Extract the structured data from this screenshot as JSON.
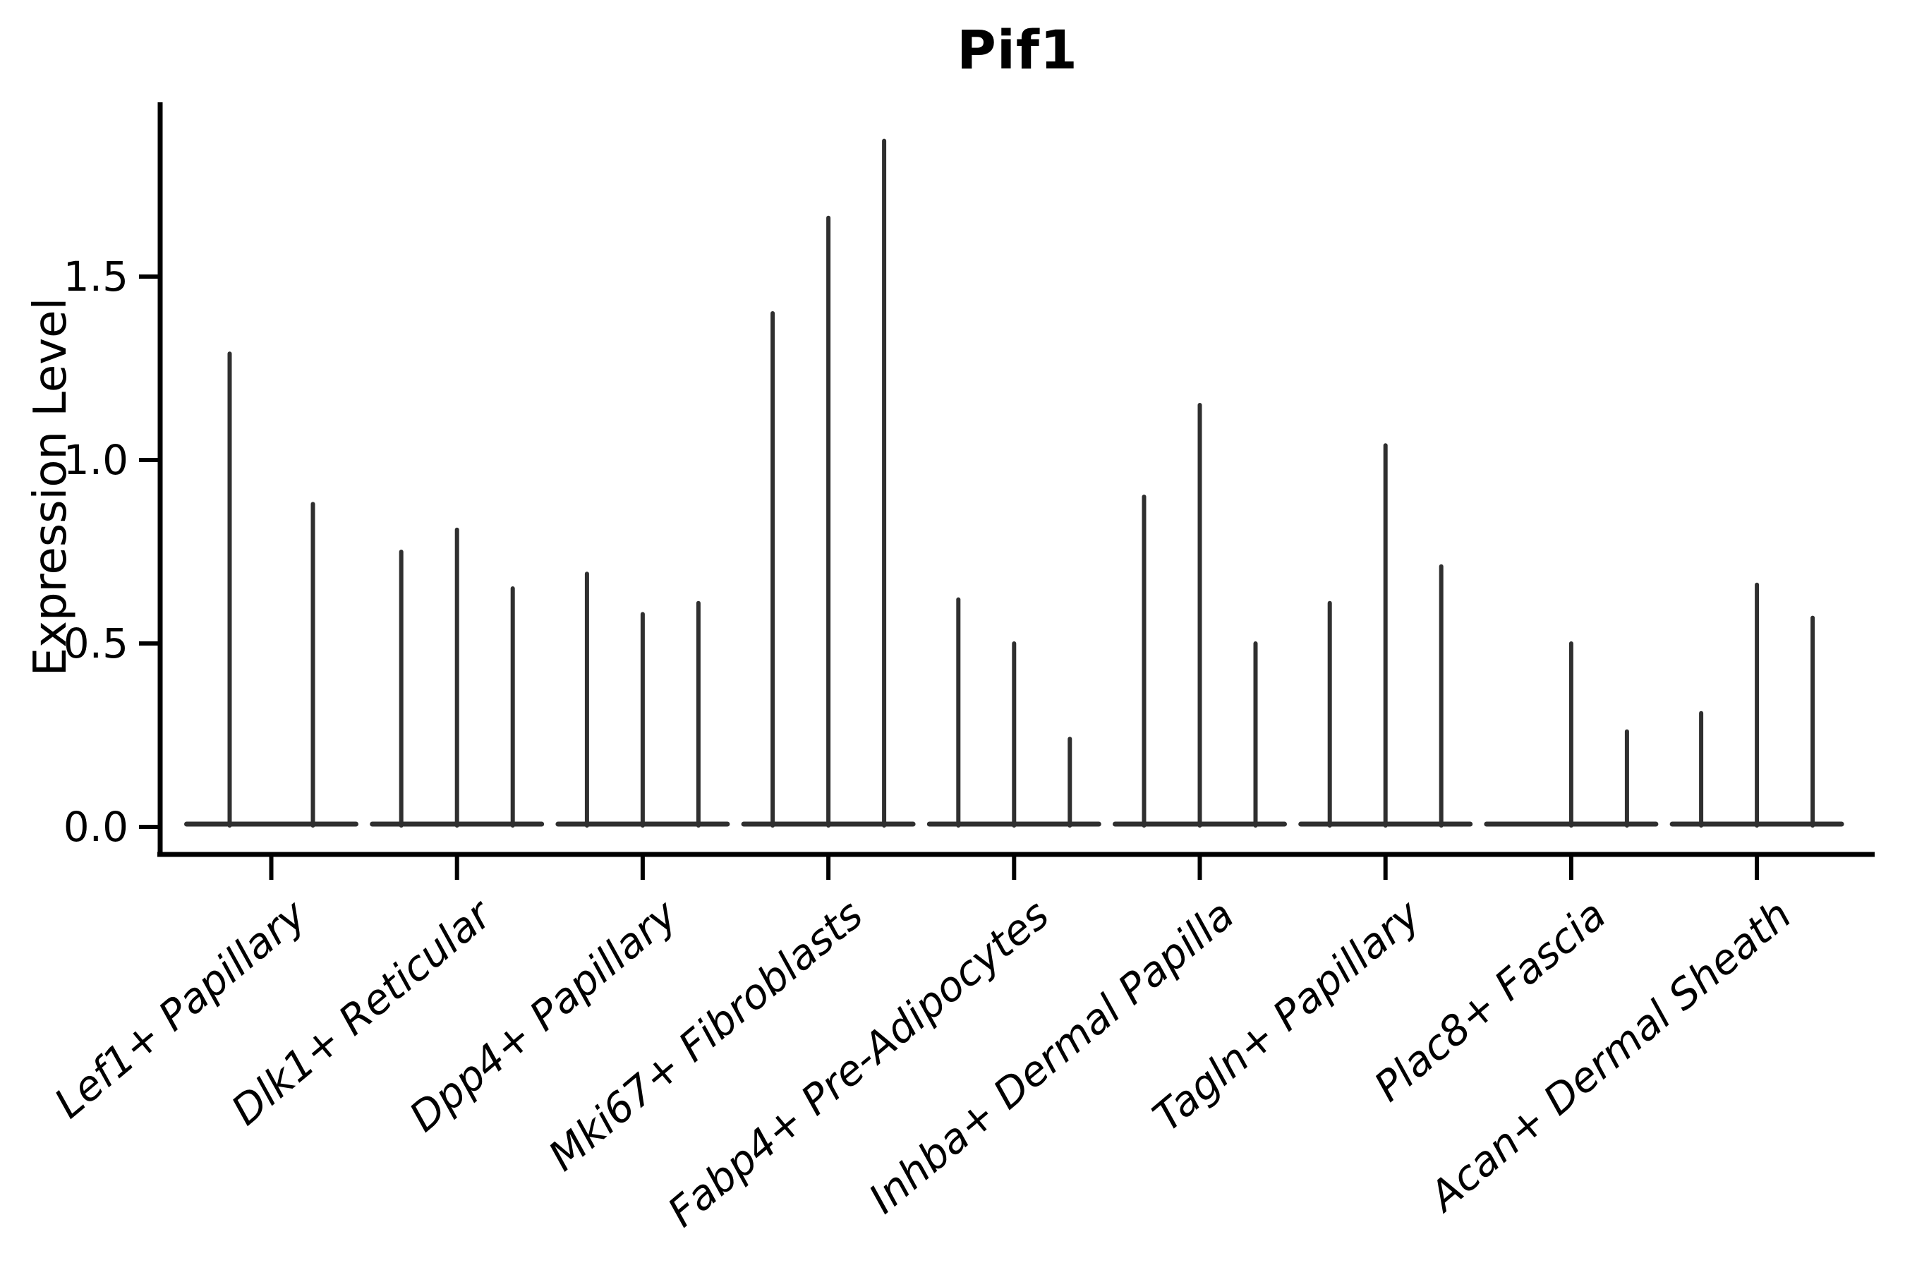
{
  "chart_data": {
    "type": "violin",
    "title": "Pif1",
    "ylabel": "Expression Level",
    "xlabel": "",
    "ylim": [
      0,
      1.95
    ],
    "grid": false,
    "legend": false,
    "x_label_rotation_deg": 40,
    "x_label_style": "italic",
    "yticks": [
      {
        "label": "0.0",
        "value": 0.0
      },
      {
        "label": "0.5",
        "value": 0.5
      },
      {
        "label": "1.0",
        "value": 1.0
      },
      {
        "label": "1.5",
        "value": 1.5
      }
    ],
    "categories": [
      "Lef1+ Papillary",
      "Dlk1+ Reticular",
      "Dpp4+ Papillary",
      "Mki67+ Fibroblasts",
      "Fabp4+ Pre-Adipocytes",
      "Inhba+ Dermal Papilla",
      "Tagln+ Papillary",
      "Plac8+ Fascia",
      "Acan+ Dermal Sheath"
    ],
    "description": "Needle-thin violins: each category shows a flat base at expression 0 with thin spikes rising to the max expression of each sub-violin",
    "groups": [
      {
        "category": "Lef1+ Papillary",
        "spikes": [
          {
            "dx": -59,
            "max": 1.29
          },
          {
            "dx": 59,
            "max": 0.88
          }
        ]
      },
      {
        "category": "Dlk1+ Reticular",
        "spikes": [
          {
            "dx": -79,
            "max": 0.75
          },
          {
            "dx": 0,
            "max": 0.81
          },
          {
            "dx": 79,
            "max": 0.65
          }
        ]
      },
      {
        "category": "Dpp4+ Papillary",
        "spikes": [
          {
            "dx": -79,
            "max": 0.69
          },
          {
            "dx": 0,
            "max": 0.58
          },
          {
            "dx": 79,
            "max": 0.61
          }
        ]
      },
      {
        "category": "Mki67+ Fibroblasts",
        "spikes": [
          {
            "dx": -79,
            "max": 1.4
          },
          {
            "dx": 0,
            "max": 1.66
          },
          {
            "dx": 79,
            "max": 1.87
          }
        ]
      },
      {
        "category": "Fabp4+ Pre-Adipocytes",
        "spikes": [
          {
            "dx": -79,
            "max": 0.62
          },
          {
            "dx": 0,
            "max": 0.5
          },
          {
            "dx": 79,
            "max": 0.24
          }
        ]
      },
      {
        "category": "Inhba+ Dermal Papilla",
        "spikes": [
          {
            "dx": -79,
            "max": 0.9
          },
          {
            "dx": 0,
            "max": 1.15
          },
          {
            "dx": 79,
            "max": 0.5
          }
        ]
      },
      {
        "category": "Tagln+ Papillary",
        "spikes": [
          {
            "dx": -79,
            "max": 0.61
          },
          {
            "dx": 0,
            "max": 1.04
          },
          {
            "dx": 79,
            "max": 0.71
          }
        ]
      },
      {
        "category": "Plac8+ Fascia",
        "spikes": [
          {
            "dx": -79,
            "max": 0.0
          },
          {
            "dx": 0,
            "max": 0.5
          },
          {
            "dx": 79,
            "max": 0.26
          }
        ]
      },
      {
        "category": "Acan+ Dermal Sheath",
        "spikes": [
          {
            "dx": -79,
            "max": 0.31
          },
          {
            "dx": 0,
            "max": 0.66
          },
          {
            "dx": 79,
            "max": 0.57
          }
        ]
      }
    ],
    "colors": {
      "violin_line": "#2f2f2f",
      "axis": "#000000",
      "background": "#ffffff",
      "text": "#000000"
    }
  }
}
